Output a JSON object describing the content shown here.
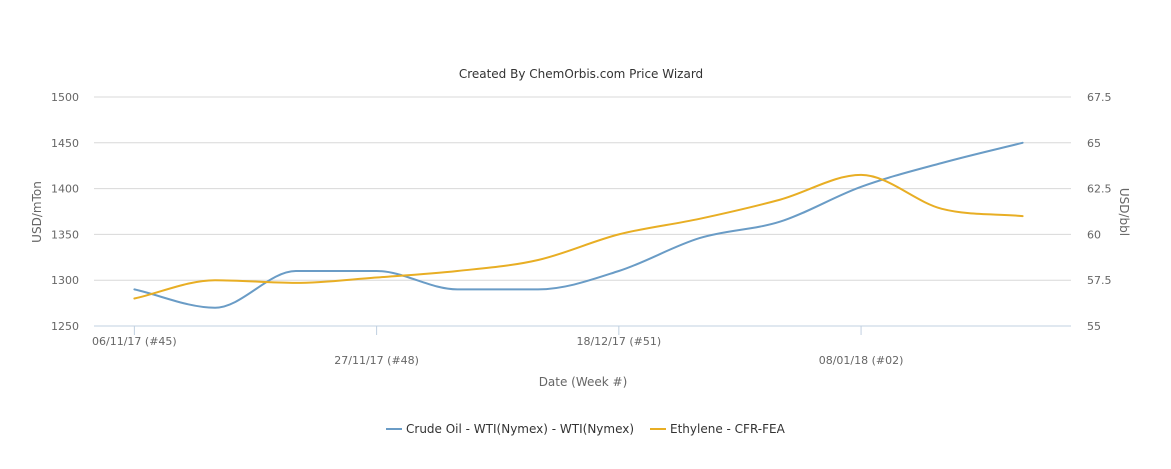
{
  "chart_data": {
    "type": "line",
    "title": "Created By ChemOrbis.com Price Wizard",
    "xlabel": "Date (Week #)",
    "ylabel_left": "USD/mTon",
    "ylabel_right": "USD/bbl",
    "x_ticks": [
      "06/11/17 (#45)",
      "27/11/17 (#48)",
      "18/12/17 (#51)",
      "08/01/18 (#02)"
    ],
    "x_tick_weeks": [
      0,
      3,
      6,
      9
    ],
    "x_range": [
      -0.5,
      11.6
    ],
    "ylim_left": [
      1250,
      1500
    ],
    "yticks_left": [
      1250,
      1300,
      1350,
      1400,
      1450,
      1500
    ],
    "ylim_right": [
      55,
      67.5
    ],
    "yticks_right": [
      "55",
      "57.5",
      "60",
      "62.5",
      "65",
      "67.5"
    ],
    "grid": true,
    "legend_position": "bottom",
    "series": [
      {
        "name": "Crude Oil - WTI(Nymex) - WTI(Nymex)",
        "axis": "right",
        "color": "#6a9cc6",
        "x": [
          0,
          1,
          2,
          3,
          4,
          5,
          6,
          7,
          8,
          9,
          10,
          11
        ],
        "y": [
          57,
          56,
          58,
          58,
          57,
          57,
          58,
          59.8,
          60.7,
          62.6,
          63.9,
          65
        ]
      },
      {
        "name": "Ethylene - CFR-FEA",
        "axis": "left",
        "color": "#e8ae24",
        "x": [
          0,
          1,
          2,
          3,
          4,
          5,
          6,
          7,
          8,
          9,
          10,
          11
        ],
        "y": [
          1280,
          1300,
          1297,
          1303,
          1310,
          1322,
          1350,
          1367,
          1388,
          1415,
          1378,
          1370
        ]
      }
    ]
  }
}
